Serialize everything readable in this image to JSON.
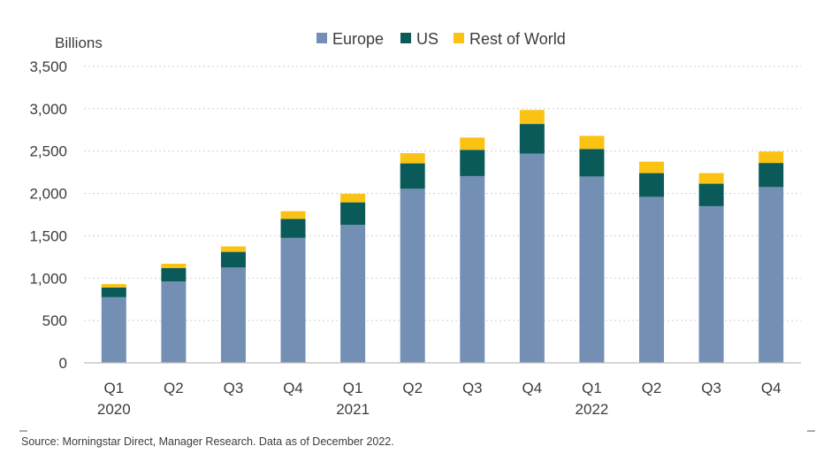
{
  "chart_data": {
    "type": "bar",
    "stacked": true,
    "ylabel": "Billions",
    "ylim": [
      0,
      3500
    ],
    "yticks": [
      0,
      500,
      1000,
      1500,
      2000,
      2500,
      3000,
      3500
    ],
    "ytick_labels": [
      "0",
      "500",
      "1,000",
      "1,500",
      "2,000",
      "2,500",
      "3,000",
      "3,500"
    ],
    "grid": "horizontal dashed",
    "legend_position": "top-center",
    "categories": [
      "Q1 2020",
      "Q2 2020",
      "Q3 2020",
      "Q4 2020",
      "Q1 2021",
      "Q2 2021",
      "Q3 2021",
      "Q4 2021",
      "Q1 2022",
      "Q2 2022",
      "Q3 2022",
      "Q4 2022"
    ],
    "x_quarter_labels": [
      "Q1",
      "Q2",
      "Q3",
      "Q4",
      "Q1",
      "Q2",
      "Q3",
      "Q4",
      "Q1",
      "Q2",
      "Q3",
      "Q4"
    ],
    "x_year_labels": [
      {
        "index": 0,
        "label": "2020"
      },
      {
        "index": 4,
        "label": "2021"
      },
      {
        "index": 8,
        "label": "2022"
      }
    ],
    "series": [
      {
        "name": "Europe",
        "color": "#7390b4",
        "values": [
          775,
          960,
          1125,
          1475,
          1630,
          2055,
          2205,
          2470,
          2200,
          1960,
          1850,
          2075
        ]
      },
      {
        "name": "US",
        "color": "#0a5a5a",
        "values": [
          115,
          160,
          185,
          225,
          265,
          300,
          310,
          350,
          325,
          280,
          265,
          285
        ]
      },
      {
        "name": "Rest of World",
        "color": "#fac314",
        "values": [
          40,
          50,
          65,
          90,
          100,
          120,
          145,
          165,
          155,
          135,
          125,
          135
        ]
      }
    ],
    "source": "Source: Morningstar Direct, Manager Research. Data as of December 2022."
  }
}
